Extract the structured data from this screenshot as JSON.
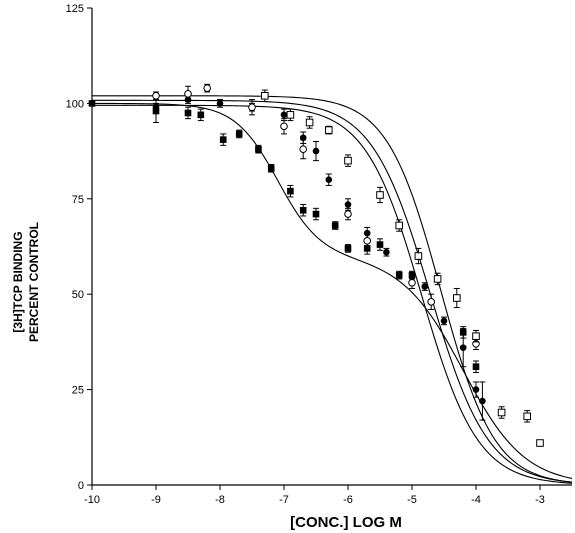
{
  "chart_data": {
    "type": "scatter",
    "title": "",
    "xlabel": "[CONC.] LOG M",
    "ylabel_lines": [
      "[3H]TCP BINDING",
      "PERCENT CONTROL"
    ],
    "xlim": [
      -10,
      -2.5
    ],
    "ylim": [
      0,
      125
    ],
    "x_ticks": [
      -10,
      -9,
      -8,
      -7,
      -6,
      -5,
      -4,
      -3
    ],
    "y_ticks": [
      0,
      25,
      50,
      75,
      100,
      125
    ],
    "grid": false,
    "legend": "none",
    "colors": {
      "ink": "#000000",
      "background": "#ffffff"
    },
    "series": [
      {
        "marker": "filled-square",
        "points": [
          {
            "x": -10,
            "y": 100,
            "err": 0
          },
          {
            "x": -9,
            "y": 98,
            "err": 3
          },
          {
            "x": -8.5,
            "y": 97.5,
            "err": 1.5
          },
          {
            "x": -8.3,
            "y": 97,
            "err": 1.5
          },
          {
            "x": -7.95,
            "y": 90.5,
            "err": 1.5
          },
          {
            "x": -7.7,
            "y": 92,
            "err": 1
          },
          {
            "x": -7.4,
            "y": 88,
            "err": 1
          },
          {
            "x": -7.2,
            "y": 83,
            "err": 1
          },
          {
            "x": -6.9,
            "y": 77,
            "err": 1.5
          },
          {
            "x": -6.7,
            "y": 72,
            "err": 1.5
          },
          {
            "x": -6.5,
            "y": 71,
            "err": 1.5
          },
          {
            "x": -6.2,
            "y": 68,
            "err": 1
          },
          {
            "x": -6.0,
            "y": 62,
            "err": 1
          },
          {
            "x": -5.7,
            "y": 62,
            "err": 1.5
          },
          {
            "x": -5.5,
            "y": 63,
            "err": 1.5
          },
          {
            "x": -5.2,
            "y": 55,
            "err": 1
          },
          {
            "x": -5.0,
            "y": 55,
            "err": 1
          },
          {
            "x": -4.2,
            "y": 40,
            "err": 1.5
          },
          {
            "x": -4.0,
            "y": 31,
            "err": 1.5
          }
        ],
        "curve": {
          "bottom": 0,
          "plateau": 28,
          "ic50_1": -7.1,
          "ic50_2": -4.2,
          "frac": 0.72,
          "span": 100
        }
      },
      {
        "marker": "filled-circle",
        "points": [
          {
            "x": -9,
            "y": 99,
            "err": 1
          },
          {
            "x": -8.5,
            "y": 101,
            "err": 1
          },
          {
            "x": -8,
            "y": 100,
            "err": 1
          },
          {
            "x": -7.5,
            "y": 99,
            "err": 1
          },
          {
            "x": -7.0,
            "y": 97,
            "err": 1.5
          },
          {
            "x": -6.7,
            "y": 91,
            "err": 1.5
          },
          {
            "x": -6.5,
            "y": 87.5,
            "err": 2.5
          },
          {
            "x": -6.3,
            "y": 80,
            "err": 1.5
          },
          {
            "x": -6.0,
            "y": 73.5,
            "err": 1.5
          },
          {
            "x": -5.7,
            "y": 66,
            "err": 1.5
          },
          {
            "x": -5.4,
            "y": 61,
            "err": 1
          },
          {
            "x": -5.0,
            "y": 53,
            "err": 1.5
          },
          {
            "x": -4.8,
            "y": 52,
            "err": 1
          },
          {
            "x": -4.5,
            "y": 43,
            "err": 1
          },
          {
            "x": -4.2,
            "y": 36,
            "err": 5
          },
          {
            "x": -4.0,
            "y": 25,
            "err": 2
          },
          {
            "x": -3.9,
            "y": 22,
            "err": 5
          }
        ],
        "curve": {
          "top": 99.5,
          "bottom": 0,
          "ic50": -4.85,
          "slope": 0.62
        }
      },
      {
        "marker": "open-circle",
        "points": [
          {
            "x": -9,
            "y": 102,
            "err": 1
          },
          {
            "x": -8.5,
            "y": 102.5,
            "err": 2
          },
          {
            "x": -8.2,
            "y": 104,
            "err": 1
          },
          {
            "x": -7.5,
            "y": 99,
            "err": 2
          },
          {
            "x": -7.0,
            "y": 94,
            "err": 2
          },
          {
            "x": -6.7,
            "y": 88,
            "err": 2.5
          },
          {
            "x": -6.0,
            "y": 71,
            "err": 1.5
          },
          {
            "x": -5.7,
            "y": 64,
            "err": 2
          },
          {
            "x": -5.0,
            "y": 53,
            "err": 1.5
          },
          {
            "x": -4.7,
            "y": 48,
            "err": 2
          },
          {
            "x": -4.0,
            "y": 37,
            "err": 1.5
          }
        ],
        "curve": {
          "top": 100.8,
          "bottom": 0,
          "ic50": -4.72,
          "slope": 0.6
        }
      },
      {
        "marker": "open-square",
        "points": [
          {
            "x": -7.3,
            "y": 102,
            "err": 1.5
          },
          {
            "x": -6.9,
            "y": 97,
            "err": 1.5
          },
          {
            "x": -6.6,
            "y": 95,
            "err": 1.5
          },
          {
            "x": -6.3,
            "y": 93,
            "err": 1
          },
          {
            "x": -6.0,
            "y": 85,
            "err": 1.5
          },
          {
            "x": -5.5,
            "y": 76,
            "err": 2
          },
          {
            "x": -5.2,
            "y": 68,
            "err": 1.5
          },
          {
            "x": -4.9,
            "y": 60,
            "err": 2
          },
          {
            "x": -4.6,
            "y": 54,
            "err": 1.5
          },
          {
            "x": -4.3,
            "y": 49,
            "err": 2.5
          },
          {
            "x": -4.0,
            "y": 39,
            "err": 1.5
          },
          {
            "x": -3.6,
            "y": 19,
            "err": 1.5
          },
          {
            "x": -3.2,
            "y": 18,
            "err": 1.5
          },
          {
            "x": -3.0,
            "y": 11,
            "err": 0
          }
        ],
        "curve": {
          "top": 102,
          "bottom": 0,
          "ic50": -4.55,
          "slope": 0.65
        }
      }
    ]
  }
}
